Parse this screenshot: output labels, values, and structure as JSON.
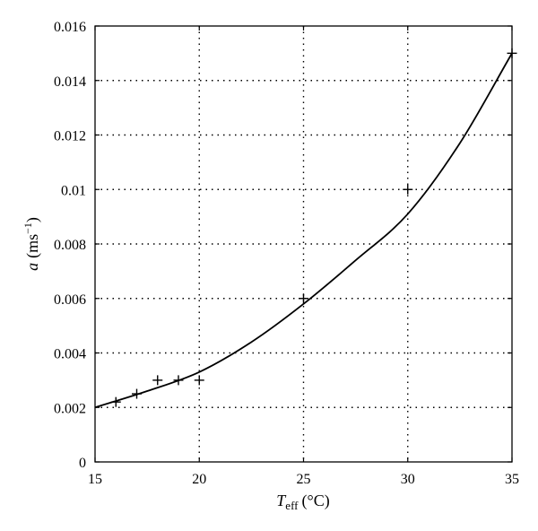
{
  "chart_data": {
    "type": "scatter",
    "xlim": [
      15,
      35
    ],
    "ylim": [
      0,
      0.016
    ],
    "x_ticks": [
      "15",
      "20",
      "25",
      "30",
      "35"
    ],
    "y_ticks": [
      "0",
      "0.002",
      "0.004",
      "0.006",
      "0.008",
      "0.01",
      "0.012",
      "0.014",
      "0.016"
    ],
    "xlabel": {
      "symbol": "T",
      "subscript": "eff",
      "unit": "(°C)"
    },
    "ylabel": {
      "symbol": "a",
      "unit_open": "(ms",
      "unit_exp": "−1",
      "unit_close": ")"
    },
    "grid": true,
    "series": [
      {
        "kind": "markers",
        "marker": "plus",
        "points": [
          {
            "x": 16,
            "y": 0.0022
          },
          {
            "x": 17,
            "y": 0.0025
          },
          {
            "x": 18,
            "y": 0.003
          },
          {
            "x": 19,
            "y": 0.003
          },
          {
            "x": 20,
            "y": 0.003
          },
          {
            "x": 25,
            "y": 0.006
          },
          {
            "x": 30,
            "y": 0.01
          },
          {
            "x": 35,
            "y": 0.015
          }
        ]
      },
      {
        "kind": "line",
        "points": [
          {
            "x": 15,
            "y": 0.002
          },
          {
            "x": 17.5,
            "y": 0.0026
          },
          {
            "x": 20,
            "y": 0.0033
          },
          {
            "x": 22.5,
            "y": 0.0044
          },
          {
            "x": 25,
            "y": 0.0058
          },
          {
            "x": 27.5,
            "y": 0.0074
          },
          {
            "x": 30,
            "y": 0.0091
          },
          {
            "x": 32.5,
            "y": 0.0117
          },
          {
            "x": 35,
            "y": 0.015
          }
        ]
      }
    ]
  }
}
